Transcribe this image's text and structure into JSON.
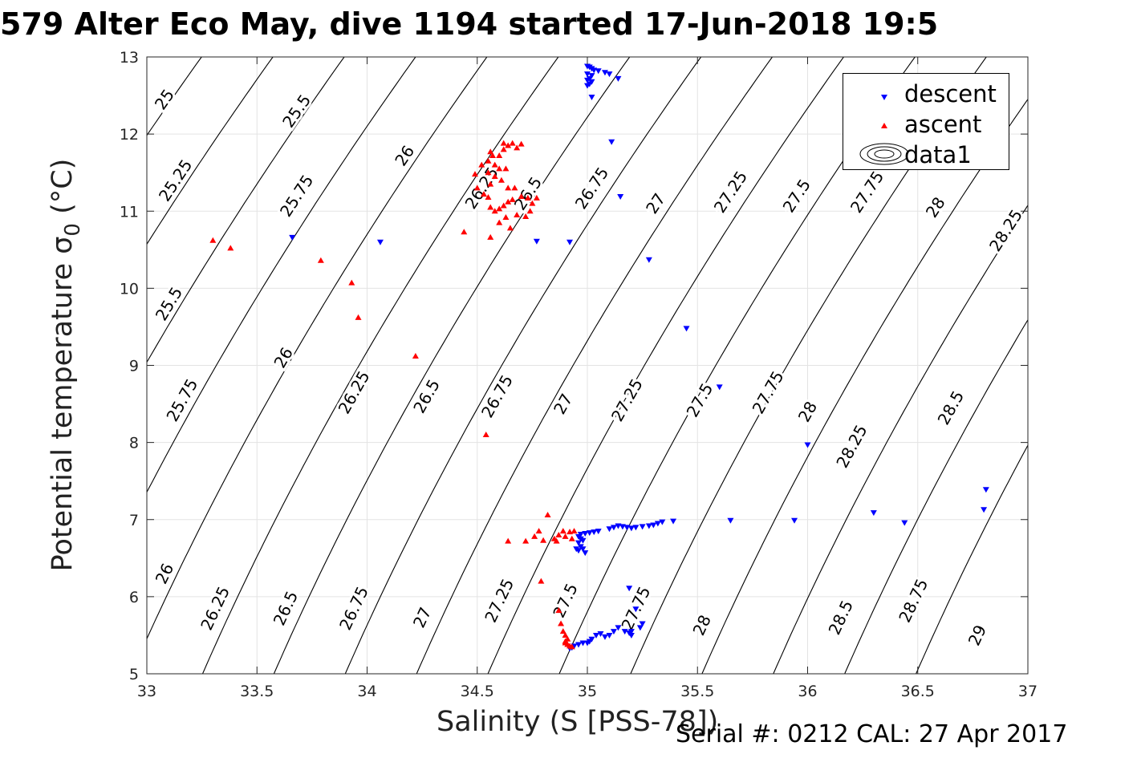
{
  "figure_title": "579 Alter Eco May, dive 1194 started 17-Jun-2018 19:5",
  "footer": {
    "serial": "Serial #: 0212  CAL: 27 Apr 2017"
  },
  "colors": {
    "descent": "#0000ff",
    "ascent": "#ff0000",
    "contour": "#000000",
    "grid": "#e3e3e3"
  },
  "chart_data": {
    "type": "scatter",
    "xlabel": "Salinity (S [PSS-78])",
    "ylabel_prefix": "Potential temperature ",
    "ylabel_symbol": "σ",
    "ylabel_sub": "0",
    "ylabel_suffix": " (°C)",
    "xlim": [
      33,
      37
    ],
    "ylim": [
      5,
      13
    ],
    "xticks": [
      "33",
      "33.5",
      "34",
      "34.5",
      "35",
      "35.5",
      "36",
      "36.5",
      "37"
    ],
    "yticks": [
      "5",
      "6",
      "7",
      "8",
      "9",
      "10",
      "11",
      "12",
      "13"
    ],
    "grid": true,
    "legend_position": "top-right",
    "legend": [
      "descent",
      "ascent",
      "data1"
    ],
    "contours": {
      "type": "density isopycnals",
      "levels": [
        "25",
        "25.25",
        "25.5",
        "25.75",
        "26",
        "26.25",
        "26.5",
        "26.75",
        "27",
        "27.25",
        "27.5",
        "27.75",
        "28",
        "28.25",
        "28.5",
        "28.75",
        "29"
      ],
      "label_positions": [
        [
          33.08,
          12.45,
          "25"
        ],
        [
          33.68,
          12.3,
          "25.5"
        ],
        [
          33.13,
          11.4,
          "25.25"
        ],
        [
          33.68,
          11.2,
          "25.75"
        ],
        [
          34.17,
          11.72,
          "26"
        ],
        [
          34.52,
          11.3,
          "26.25"
        ],
        [
          34.73,
          11.23,
          "26.5"
        ],
        [
          35.02,
          11.3,
          "26.75"
        ],
        [
          35.31,
          11.1,
          "27"
        ],
        [
          35.65,
          11.25,
          "27.25"
        ],
        [
          35.95,
          11.2,
          "27.5"
        ],
        [
          36.27,
          11.25,
          "27.75"
        ],
        [
          36.58,
          11.05,
          "28"
        ],
        [
          36.9,
          10.75,
          "28.25"
        ],
        [
          33.1,
          9.8,
          "25.5"
        ],
        [
          33.16,
          8.55,
          "25.75"
        ],
        [
          33.62,
          9.1,
          "26"
        ],
        [
          33.94,
          8.65,
          "26.25"
        ],
        [
          34.27,
          8.6,
          "26.5"
        ],
        [
          34.59,
          8.6,
          "26.75"
        ],
        [
          34.89,
          8.5,
          "27"
        ],
        [
          35.18,
          8.55,
          "27.25"
        ],
        [
          35.51,
          8.55,
          "27.5"
        ],
        [
          35.82,
          8.65,
          "27.75"
        ],
        [
          36.0,
          8.4,
          "28"
        ],
        [
          36.2,
          7.95,
          "28.25"
        ],
        [
          36.65,
          8.45,
          "28.5"
        ],
        [
          33.08,
          6.3,
          "26"
        ],
        [
          33.31,
          5.85,
          "26.25"
        ],
        [
          33.63,
          5.85,
          "26.5"
        ],
        [
          33.94,
          5.85,
          "26.75"
        ],
        [
          34.25,
          5.73,
          "27"
        ],
        [
          34.6,
          5.95,
          "27.25"
        ],
        [
          34.9,
          5.95,
          "27.5"
        ],
        [
          35.22,
          5.85,
          "27.75"
        ],
        [
          35.52,
          5.63,
          "28"
        ],
        [
          36.15,
          5.73,
          "28.5"
        ],
        [
          36.48,
          5.95,
          "28.75"
        ],
        [
          36.77,
          5.5,
          "29"
        ]
      ]
    },
    "series": [
      {
        "name": "descent",
        "marker": "triangle-down",
        "color": "#0000ff",
        "points": [
          [
            35.0,
            12.88
          ],
          [
            35.01,
            12.87
          ],
          [
            35.02,
            12.85
          ],
          [
            35.03,
            12.83
          ],
          [
            35.05,
            12.82
          ],
          [
            35.0,
            12.78
          ],
          [
            35.02,
            12.76
          ],
          [
            35.01,
            12.72
          ],
          [
            35.0,
            12.7
          ],
          [
            35.02,
            12.68
          ],
          [
            35.01,
            12.65
          ],
          [
            35.0,
            12.63
          ],
          [
            35.14,
            12.72
          ],
          [
            35.1,
            12.78
          ],
          [
            35.08,
            12.8
          ],
          [
            35.02,
            12.48
          ],
          [
            35.11,
            11.9
          ],
          [
            35.15,
            11.19
          ],
          [
            33.66,
            10.66
          ],
          [
            34.06,
            10.6
          ],
          [
            34.77,
            10.61
          ],
          [
            34.92,
            10.6
          ],
          [
            35.28,
            10.37
          ],
          [
            35.45,
            9.48
          ],
          [
            35.6,
            8.72
          ],
          [
            36.0,
            7.97
          ],
          [
            36.81,
            7.39
          ],
          [
            36.8,
            7.13
          ],
          [
            36.3,
            7.09
          ],
          [
            36.44,
            6.96
          ],
          [
            35.94,
            6.99
          ],
          [
            35.65,
            6.99
          ],
          [
            35.39,
            6.98
          ],
          [
            35.34,
            6.97
          ],
          [
            35.32,
            6.95
          ],
          [
            35.3,
            6.93
          ],
          [
            35.28,
            6.92
          ],
          [
            35.25,
            6.91
          ],
          [
            35.22,
            6.9
          ],
          [
            35.2,
            6.89
          ],
          [
            35.18,
            6.9
          ],
          [
            35.16,
            6.91
          ],
          [
            35.14,
            6.92
          ],
          [
            35.12,
            6.9
          ],
          [
            35.1,
            6.88
          ],
          [
            35.05,
            6.85
          ],
          [
            35.03,
            6.84
          ],
          [
            35.01,
            6.83
          ],
          [
            34.99,
            6.82
          ],
          [
            34.97,
            6.81
          ],
          [
            34.96,
            6.78
          ],
          [
            34.97,
            6.75
          ],
          [
            34.98,
            6.73
          ],
          [
            34.96,
            6.7
          ],
          [
            34.97,
            6.65
          ],
          [
            34.98,
            6.62
          ],
          [
            34.96,
            6.6
          ],
          [
            34.99,
            6.57
          ],
          [
            34.95,
            6.62
          ],
          [
            35.19,
            6.11
          ],
          [
            35.22,
            5.84
          ],
          [
            35.25,
            5.65
          ],
          [
            35.24,
            5.6
          ],
          [
            35.2,
            5.55
          ],
          [
            35.19,
            5.53
          ],
          [
            35.2,
            5.5
          ],
          [
            35.17,
            5.55
          ],
          [
            35.14,
            5.6
          ],
          [
            35.12,
            5.55
          ],
          [
            35.1,
            5.5
          ],
          [
            35.08,
            5.48
          ],
          [
            35.06,
            5.52
          ],
          [
            35.04,
            5.5
          ],
          [
            35.02,
            5.45
          ],
          [
            35.01,
            5.42
          ],
          [
            35.0,
            5.4
          ],
          [
            34.98,
            5.4
          ],
          [
            34.96,
            5.38
          ],
          [
            34.94,
            5.36
          ],
          [
            34.93,
            5.34
          ],
          [
            34.92,
            5.33
          ]
        ]
      },
      {
        "name": "ascent",
        "marker": "triangle-up",
        "color": "#ff0000",
        "points": [
          [
            34.56,
            11.77
          ],
          [
            34.57,
            11.72
          ],
          [
            34.55,
            11.65
          ],
          [
            34.58,
            11.6
          ],
          [
            34.52,
            11.6
          ],
          [
            34.6,
            11.55
          ],
          [
            34.63,
            11.55
          ],
          [
            34.62,
            11.88
          ],
          [
            34.64,
            11.85
          ],
          [
            34.66,
            11.88
          ],
          [
            34.68,
            11.82
          ],
          [
            34.7,
            11.87
          ],
          [
            34.62,
            11.8
          ],
          [
            34.6,
            11.72
          ],
          [
            34.55,
            11.5
          ],
          [
            34.58,
            11.45
          ],
          [
            34.56,
            11.35
          ],
          [
            34.61,
            11.4
          ],
          [
            34.64,
            11.3
          ],
          [
            34.67,
            11.3
          ],
          [
            34.49,
            11.48
          ],
          [
            34.5,
            11.3
          ],
          [
            34.53,
            11.22
          ],
          [
            34.55,
            11.18
          ],
          [
            34.56,
            11.05
          ],
          [
            34.58,
            11.0
          ],
          [
            34.6,
            11.03
          ],
          [
            34.62,
            11.07
          ],
          [
            34.64,
            11.12
          ],
          [
            34.66,
            11.15
          ],
          [
            34.7,
            11.19
          ],
          [
            34.73,
            11.17
          ],
          [
            34.75,
            11.1
          ],
          [
            34.77,
            11.17
          ],
          [
            34.74,
            11.0
          ],
          [
            34.72,
            10.93
          ],
          [
            34.68,
            10.95
          ],
          [
            34.63,
            10.92
          ],
          [
            34.6,
            10.85
          ],
          [
            34.65,
            10.78
          ],
          [
            34.56,
            10.66
          ],
          [
            34.44,
            10.73
          ],
          [
            33.3,
            10.62
          ],
          [
            33.38,
            10.52
          ],
          [
            33.79,
            10.36
          ],
          [
            33.93,
            10.07
          ],
          [
            33.96,
            9.62
          ],
          [
            34.22,
            9.12
          ],
          [
            34.54,
            8.1
          ],
          [
            34.82,
            7.06
          ],
          [
            34.78,
            6.85
          ],
          [
            34.76,
            6.78
          ],
          [
            34.8,
            6.73
          ],
          [
            34.85,
            6.75
          ],
          [
            34.87,
            6.8
          ],
          [
            34.89,
            6.85
          ],
          [
            34.92,
            6.84
          ],
          [
            34.94,
            6.85
          ],
          [
            34.9,
            6.78
          ],
          [
            34.93,
            6.75
          ],
          [
            34.86,
            6.72
          ],
          [
            34.72,
            6.72
          ],
          [
            34.64,
            6.72
          ],
          [
            34.79,
            6.2
          ],
          [
            34.87,
            5.82
          ],
          [
            34.88,
            5.65
          ],
          [
            34.89,
            5.55
          ],
          [
            34.9,
            5.5
          ],
          [
            34.91,
            5.45
          ],
          [
            34.9,
            5.4
          ],
          [
            34.91,
            5.38
          ],
          [
            34.92,
            5.36
          ],
          [
            34.93,
            5.35
          ],
          [
            34.9,
            5.42
          ]
        ]
      }
    ]
  }
}
